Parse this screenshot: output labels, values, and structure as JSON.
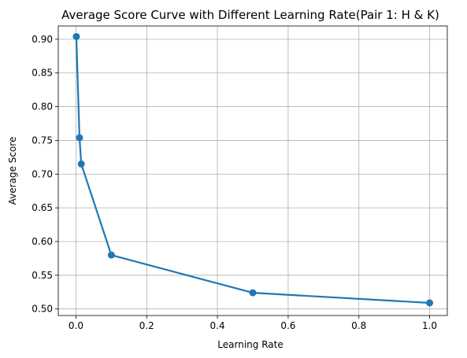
{
  "chart_data": {
    "type": "line",
    "title": "Average Score Curve with Different Learning Rate(Pair 1: H & K)",
    "xlabel": "Learning Rate",
    "ylabel": "Average Score",
    "xlim": [
      -0.05,
      1.05
    ],
    "ylim": [
      0.4903,
      0.9197
    ],
    "x_ticks": [
      0.0,
      0.2,
      0.4,
      0.6,
      0.8,
      1.0
    ],
    "x_tick_labels": [
      "0.0",
      "0.2",
      "0.4",
      "0.6",
      "0.8",
      "1.0"
    ],
    "y_ticks": [
      0.5,
      0.55,
      0.6,
      0.65,
      0.7,
      0.75,
      0.8,
      0.85,
      0.9
    ],
    "y_tick_labels": [
      "0.50",
      "0.55",
      "0.60",
      "0.65",
      "0.70",
      "0.75",
      "0.80",
      "0.85",
      "0.90"
    ],
    "grid": true,
    "series": [
      {
        "x": [
          0.001,
          0.01,
          0.015,
          0.1,
          0.5,
          1.0
        ],
        "y": [
          0.904,
          0.754,
          0.715,
          0.58,
          0.524,
          0.509
        ],
        "color": "#1f77b4",
        "marker": "circle"
      }
    ]
  }
}
